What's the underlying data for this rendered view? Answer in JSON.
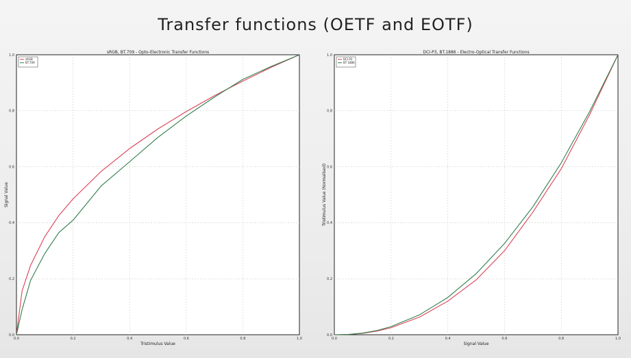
{
  "slide": {
    "title": "Transfer functions (OETF and EOTF)"
  },
  "chart_data": [
    {
      "type": "line",
      "title": "sRGB, BT.709 - Opto-Electronic Transfer Functions",
      "xlabel": "Tristimulus Value",
      "ylabel": "Signal Value",
      "xlim": [
        0,
        1
      ],
      "ylim": [
        0,
        1
      ],
      "xticks": [
        "0.0",
        "0.2",
        "0.4",
        "0.6",
        "0.8",
        "1.0"
      ],
      "yticks": [
        "0.0",
        "0.2",
        "0.4",
        "0.6",
        "0.8",
        "1.0"
      ],
      "grid": true,
      "legend_position": "top-left",
      "x": [
        0,
        0.02,
        0.05,
        0.1,
        0.15,
        0.2,
        0.3,
        0.4,
        0.5,
        0.6,
        0.7,
        0.8,
        0.9,
        1.0
      ],
      "series": [
        {
          "name": "sRGB",
          "color": "#d94055",
          "values": [
            0,
            0.157,
            0.248,
            0.35,
            0.426,
            0.485,
            0.584,
            0.665,
            0.735,
            0.797,
            0.854,
            0.906,
            0.955,
            1.0
          ]
        },
        {
          "name": "BT.709",
          "color": "#2e7d4a",
          "values": [
            0,
            0.09,
            0.194,
            0.29,
            0.365,
            0.409,
            0.532,
            0.618,
            0.705,
            0.781,
            0.849,
            0.912,
            0.958,
            1.0
          ]
        }
      ]
    },
    {
      "type": "line",
      "title": "DCI-P3, BT.1886 - Electro-Optical Transfer Functions",
      "xlabel": "Signal Value",
      "ylabel": "Tristimulus Value (Normalised)",
      "xlim": [
        0,
        1
      ],
      "ylim": [
        0,
        1
      ],
      "xticks": [
        "0.0",
        "0.2",
        "0.4",
        "0.6",
        "0.8",
        "1.0"
      ],
      "yticks": [
        "0.0",
        "0.2",
        "0.4",
        "0.6",
        "0.8",
        "1.0"
      ],
      "grid": true,
      "legend_position": "top-left",
      "x": [
        0,
        0.05,
        0.1,
        0.15,
        0.2,
        0.3,
        0.4,
        0.5,
        0.6,
        0.7,
        0.8,
        0.9,
        1.0
      ],
      "series": [
        {
          "name": "DCI-P3",
          "color": "#d94055",
          "values": [
            0,
            0.001,
            0.005,
            0.013,
            0.025,
            0.063,
            0.12,
            0.196,
            0.3,
            0.438,
            0.593,
            0.786,
            1.0
          ]
        },
        {
          "name": "BT 1886",
          "color": "#2e7d4a",
          "values": [
            0,
            0.001,
            0.006,
            0.015,
            0.029,
            0.071,
            0.133,
            0.218,
            0.326,
            0.457,
            0.614,
            0.797,
            1.0
          ]
        }
      ]
    }
  ]
}
